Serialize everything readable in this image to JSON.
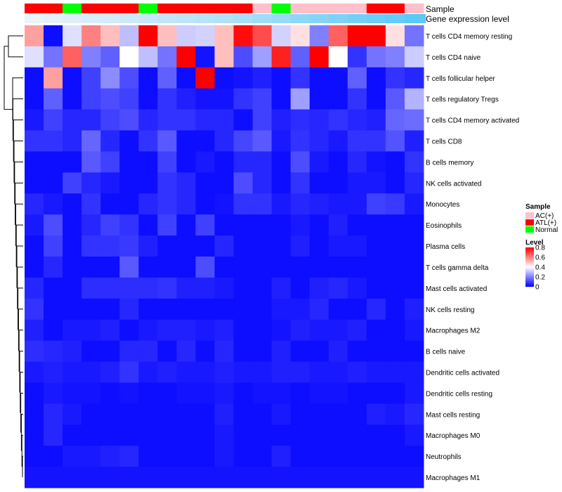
{
  "chart_data": {
    "type": "heatmap",
    "annotation_tracks": [
      {
        "label": "Sample",
        "name": "sample"
      },
      {
        "label": "Gene expression level",
        "name": "level"
      }
    ],
    "sample_groups": [
      "ATL(+)",
      "ATL(+)",
      "Normal",
      "ATL(+)",
      "ATL(+)",
      "ATL(+)",
      "Normal",
      "ATL(+)",
      "ATL(+)",
      "ATL(+)",
      "ATL(+)",
      "ATL(+)",
      "AC(+)",
      "Normal",
      "AC(+)",
      "AC(+)",
      "AC(+)",
      "AC(+)",
      "ATL(+)",
      "ATL(+)",
      "AC(+)"
    ],
    "level_track_values": [
      0.02,
      0.04,
      0.06,
      0.08,
      0.1,
      0.12,
      0.14,
      0.16,
      0.18,
      0.2,
      0.22,
      0.25,
      0.28,
      0.31,
      0.34,
      0.37,
      0.4,
      0.43,
      0.46,
      0.49,
      0.52
    ],
    "rows": [
      "T cells CD4 memory resting",
      "T cells CD4 naive",
      "T cells follicular helper",
      "T cells regulatory  Tregs",
      "T cells CD4 memory activated",
      "T cells CD8",
      "B cells memory",
      "NK cells activated",
      "Monocytes",
      "Eosinophils",
      "Plasma cells",
      "T cells gamma delta",
      "Mast cells activated",
      "NK cells resting",
      "Macrophages M2",
      "B cells naive",
      "Dendritic cells activated",
      "Dendritic cells resting",
      "Mast cells resting",
      "Macrophages M0",
      "Neutrophils",
      "Macrophages M1"
    ],
    "values": [
      [
        0.55,
        0.02,
        0.35,
        0.6,
        0.5,
        0.3,
        0.8,
        0.5,
        0.32,
        0.33,
        0.5,
        0.78,
        0.68,
        0.33,
        0.45,
        0.2,
        0.65,
        0.8,
        0.8,
        0.45,
        0.18
      ],
      [
        0.35,
        0.18,
        0.65,
        0.2,
        0.15,
        0.4,
        0.3,
        0.18,
        0.8,
        0.03,
        0.5,
        0.12,
        0.25,
        0.75,
        0.15,
        0.8,
        0.4,
        0.08,
        0.18,
        0.2,
        0.32
      ],
      [
        0.02,
        0.55,
        0.02,
        0.1,
        0.22,
        0.12,
        0.02,
        0.15,
        0.02,
        0.8,
        0.02,
        0.03,
        0.05,
        0.02,
        0.08,
        0.02,
        0.02,
        0.15,
        0.02,
        0.08,
        0.06
      ],
      [
        0.02,
        0.15,
        0.02,
        0.1,
        0.12,
        0.1,
        0.02,
        0.08,
        0.05,
        0.03,
        0.03,
        0.08,
        0.1,
        0.02,
        0.25,
        0.02,
        0.02,
        0.08,
        0.02,
        0.14,
        0.28
      ],
      [
        0.04,
        0.1,
        0.06,
        0.06,
        0.1,
        0.12,
        0.06,
        0.08,
        0.08,
        0.06,
        0.06,
        0.02,
        0.1,
        0.05,
        0.07,
        0.06,
        0.08,
        0.06,
        0.05,
        0.16,
        0.17
      ],
      [
        0.08,
        0.08,
        0.06,
        0.16,
        0.06,
        0.02,
        0.08,
        0.14,
        0.02,
        0.02,
        0.06,
        0.11,
        0.14,
        0.04,
        0.08,
        0.06,
        0.04,
        0.08,
        0.08,
        0.13,
        0.05
      ],
      [
        0.02,
        0.02,
        0.02,
        0.14,
        0.1,
        0.02,
        0.02,
        0.1,
        0.02,
        0.04,
        0.02,
        0.06,
        0.06,
        0.02,
        0.12,
        0.04,
        0.02,
        0.06,
        0.03,
        0.02,
        0.08
      ],
      [
        0.02,
        0.02,
        0.1,
        0.06,
        0.04,
        0.02,
        0.02,
        0.08,
        0.06,
        0.02,
        0.02,
        0.12,
        0.06,
        0.02,
        0.08,
        0.02,
        0.02,
        0.04,
        0.04,
        0.02,
        0.06
      ],
      [
        0.06,
        0.04,
        0.02,
        0.08,
        0.02,
        0.02,
        0.06,
        0.08,
        0.06,
        0.02,
        0.03,
        0.08,
        0.08,
        0.04,
        0.06,
        0.05,
        0.04,
        0.04,
        0.1,
        0.09,
        0.04
      ],
      [
        0.04,
        0.12,
        0.02,
        0.06,
        0.1,
        0.08,
        0.02,
        0.1,
        0.02,
        0.1,
        0.02,
        0.02,
        0.02,
        0.02,
        0.04,
        0.02,
        0.05,
        0.02,
        0.02,
        0.02,
        0.02
      ],
      [
        0.02,
        0.1,
        0.02,
        0.08,
        0.08,
        0.09,
        0.05,
        0.02,
        0.02,
        0.02,
        0.06,
        0.02,
        0.02,
        0.02,
        0.05,
        0.02,
        0.04,
        0.04,
        0.02,
        0.02,
        0.02
      ],
      [
        0.02,
        0.06,
        0.02,
        0.02,
        0.02,
        0.14,
        0.02,
        0.02,
        0.02,
        0.12,
        0.02,
        0.02,
        0.02,
        0.02,
        0.02,
        0.02,
        0.02,
        0.02,
        0.02,
        0.02,
        0.02
      ],
      [
        0.06,
        0.02,
        0.02,
        0.07,
        0.07,
        0.07,
        0.07,
        0.08,
        0.05,
        0.05,
        0.04,
        0.02,
        0.02,
        0.05,
        0.02,
        0.05,
        0.06,
        0.04,
        0.02,
        0.02,
        0.02
      ],
      [
        0.08,
        0.02,
        0.02,
        0.02,
        0.02,
        0.06,
        0.02,
        0.02,
        0.02,
        0.02,
        0.02,
        0.02,
        0.02,
        0.04,
        0.04,
        0.06,
        0.02,
        0.02,
        0.06,
        0.02,
        0.05
      ],
      [
        0.05,
        0.02,
        0.04,
        0.04,
        0.05,
        0.02,
        0.04,
        0.05,
        0.05,
        0.04,
        0.05,
        0.02,
        0.02,
        0.03,
        0.05,
        0.04,
        0.04,
        0.05,
        0.02,
        0.02,
        0.04
      ],
      [
        0.07,
        0.06,
        0.05,
        0.02,
        0.02,
        0.06,
        0.06,
        0.02,
        0.06,
        0.02,
        0.06,
        0.02,
        0.02,
        0.05,
        0.02,
        0.02,
        0.05,
        0.02,
        0.02,
        0.02,
        0.02
      ],
      [
        0.04,
        0.05,
        0.04,
        0.04,
        0.05,
        0.08,
        0.04,
        0.05,
        0.04,
        0.04,
        0.05,
        0.04,
        0.04,
        0.05,
        0.05,
        0.04,
        0.04,
        0.05,
        0.04,
        0.04,
        0.04
      ],
      [
        0.02,
        0.04,
        0.03,
        0.03,
        0.02,
        0.03,
        0.02,
        0.02,
        0.03,
        0.03,
        0.04,
        0.02,
        0.03,
        0.03,
        0.02,
        0.03,
        0.03,
        0.02,
        0.02,
        0.02,
        0.04
      ],
      [
        0.02,
        0.06,
        0.04,
        0.02,
        0.02,
        0.02,
        0.02,
        0.02,
        0.02,
        0.02,
        0.05,
        0.02,
        0.02,
        0.04,
        0.02,
        0.02,
        0.02,
        0.02,
        0.05,
        0.04,
        0.06
      ],
      [
        0.02,
        0.06,
        0.02,
        0.02,
        0.02,
        0.02,
        0.02,
        0.02,
        0.02,
        0.02,
        0.04,
        0.02,
        0.02,
        0.02,
        0.02,
        0.02,
        0.02,
        0.02,
        0.02,
        0.02,
        0.04
      ],
      [
        0.02,
        0.02,
        0.04,
        0.04,
        0.05,
        0.06,
        0.02,
        0.02,
        0.02,
        0.02,
        0.04,
        0.02,
        0.02,
        0.05,
        0.02,
        0.02,
        0.02,
        0.02,
        0.02,
        0.02,
        0.02
      ],
      [
        0.03,
        0.03,
        0.03,
        0.03,
        0.03,
        0.03,
        0.03,
        0.03,
        0.03,
        0.03,
        0.03,
        0.03,
        0.03,
        0.03,
        0.03,
        0.03,
        0.03,
        0.03,
        0.03,
        0.03,
        0.03
      ]
    ],
    "color_scale": {
      "min": 0,
      "mid": 0.4,
      "max": 0.8,
      "low_color": "#0000ff",
      "mid_color": "#ffffff",
      "high_color": "#ff0000"
    },
    "legend": {
      "sample": {
        "title": "Sample",
        "entries": [
          {
            "label": "AC(+)",
            "color": "#ffc0cb"
          },
          {
            "label": "ATL(+)",
            "color": "#ff0000"
          },
          {
            "label": "Normal",
            "color": "#00ff00"
          }
        ]
      },
      "level": {
        "title": "Level",
        "ticks": [
          {
            "label": "0.8",
            "value": 0.8
          },
          {
            "label": "0.6",
            "value": 0.6
          },
          {
            "label": "0.4",
            "value": 0.4
          },
          {
            "label": "0.2",
            "value": 0.2
          },
          {
            "label": "0",
            "value": 0
          }
        ]
      },
      "placement": "right"
    },
    "dendrogram": "rows"
  }
}
